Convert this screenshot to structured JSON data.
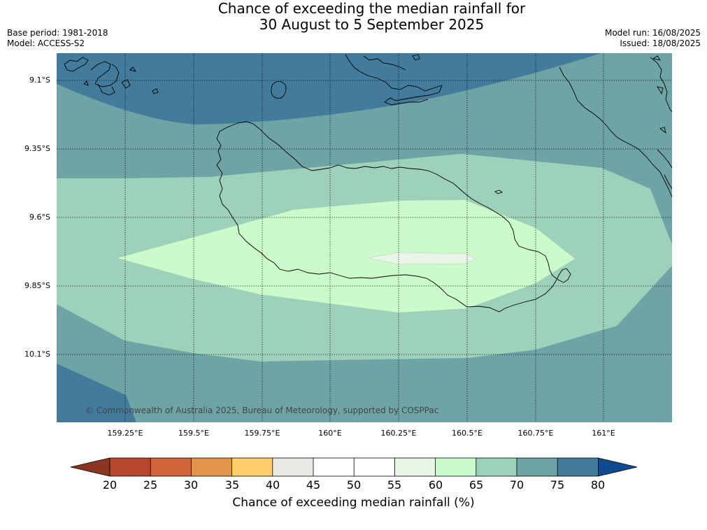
{
  "title": {
    "line1": "Chance of exceeding the median rainfall for",
    "line2": "30 August to 5 September 2025"
  },
  "meta": {
    "base_period": "Base period: 1981-2018",
    "model": "Model: ACCESS-S2",
    "model_run": "Model run: 16/08/2025",
    "issued": "Issued: 18/08/2025"
  },
  "map": {
    "latitude_labels": [
      "9.1°S",
      "9.35°S",
      "9.6°S",
      "9.85°S",
      "10.1°S"
    ],
    "longitude_labels": [
      "159.25°E",
      "159.5°E",
      "159.75°E",
      "160°E",
      "160.25°E",
      "160.5°E",
      "160.75°E",
      "161°E"
    ],
    "copyright": "© Commonwealth of Australia 2025, Bureau of Meteorology, supported by COSPPac",
    "band_colors": {
      "c55_60": "#e9f5e9",
      "c60_65": "#cbfbcb",
      "c65_70": "#9dd1b9",
      "c70_75": "#6ea4a6",
      "c75_80": "#427b9b",
      "gridline": "#000000",
      "coastline": "#000000"
    }
  },
  "colorbar": {
    "title": "Chance of exceeding median rainfall (%)",
    "ticks": [
      "20",
      "25",
      "30",
      "35",
      "40",
      "45",
      "50",
      "55",
      "60",
      "65",
      "70",
      "75",
      "80"
    ],
    "colors": {
      "below_20": "#8c3520",
      "c20_25": "#b5482a",
      "c25_30": "#d2653a",
      "c30_35": "#e29548",
      "c35_40": "#fece6c",
      "c40_45": "#ebe9e3",
      "c45_50": "#ffffff",
      "c50_55": "#ffffff",
      "c55_60": "#e9f5e9",
      "c60_65": "#cbfbcb",
      "c65_70": "#9dd1b9",
      "c70_75": "#6ea4a6",
      "c75_80": "#427b9b",
      "above_80": "#0f4b8f"
    }
  }
}
